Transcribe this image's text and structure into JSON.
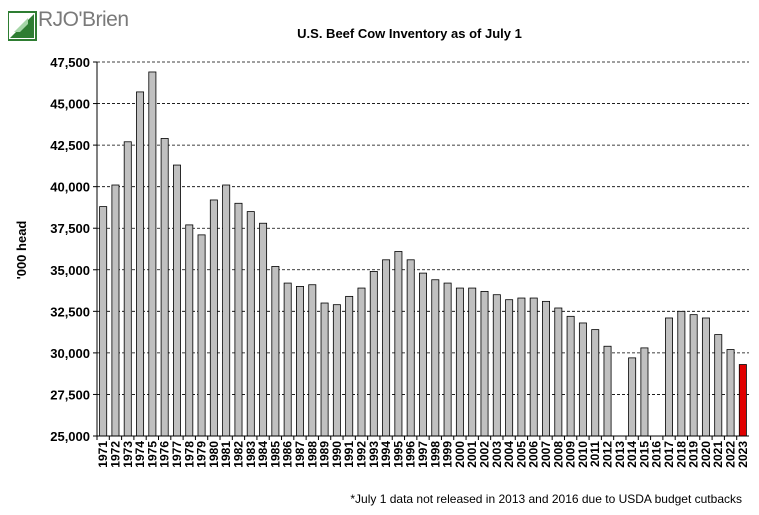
{
  "brand": {
    "logo_text": "RJO'Brien",
    "colors": {
      "logo_green": "#2e7d32",
      "logo_text": "#7a7a7a"
    }
  },
  "chart_data": {
    "type": "bar",
    "title": "U.S. Beef Cow Inventory as of July 1",
    "xlabel": "",
    "ylabel": "'000 head",
    "ylim": [
      25000,
      47500
    ],
    "yticks": [
      25000,
      27500,
      30000,
      32500,
      35000,
      37500,
      40000,
      42500,
      45000,
      47500
    ],
    "ytick_labels": [
      "25,000",
      "27,500",
      "30,000",
      "32,500",
      "35,000",
      "37,500",
      "40,000",
      "42,500",
      "45,000",
      "47,500"
    ],
    "grid": "horizontal-dashed",
    "categories": [
      "1971",
      "1972",
      "1973",
      "1974",
      "1975",
      "1976",
      "1977",
      "1978",
      "1979",
      "1980",
      "1981",
      "1982",
      "1983",
      "1984",
      "1985",
      "1986",
      "1987",
      "1988",
      "1989",
      "1990",
      "1991",
      "1992",
      "1993",
      "1994",
      "1995",
      "1996",
      "1997",
      "1998",
      "1999",
      "2000",
      "2001",
      "2002",
      "2003",
      "2004",
      "2005",
      "2006",
      "2007",
      "2008",
      "2009",
      "2010",
      "2011",
      "2012",
      "2013",
      "2014",
      "2015",
      "2016",
      "2017",
      "2018",
      "2019",
      "2020",
      "2021",
      "2022",
      "2023"
    ],
    "values": [
      38800,
      40100,
      42700,
      45700,
      46900,
      42900,
      41300,
      37700,
      37100,
      39200,
      40100,
      39000,
      38500,
      37800,
      35200,
      34200,
      34000,
      34100,
      33000,
      32900,
      33400,
      33900,
      34900,
      35600,
      36100,
      35600,
      34800,
      34400,
      34200,
      33900,
      33900,
      33700,
      33500,
      33200,
      33300,
      33300,
      33100,
      32700,
      32200,
      31800,
      31400,
      30400,
      null,
      29700,
      30300,
      null,
      32100,
      32500,
      32300,
      32100,
      31100,
      30200,
      29300
    ],
    "bar_color": "#c0c0c0",
    "highlight_color": "#e00000",
    "highlight_category": "2023",
    "footnote": "*July 1 data not released in 2013 and 2016 due to USDA budget cutbacks"
  }
}
